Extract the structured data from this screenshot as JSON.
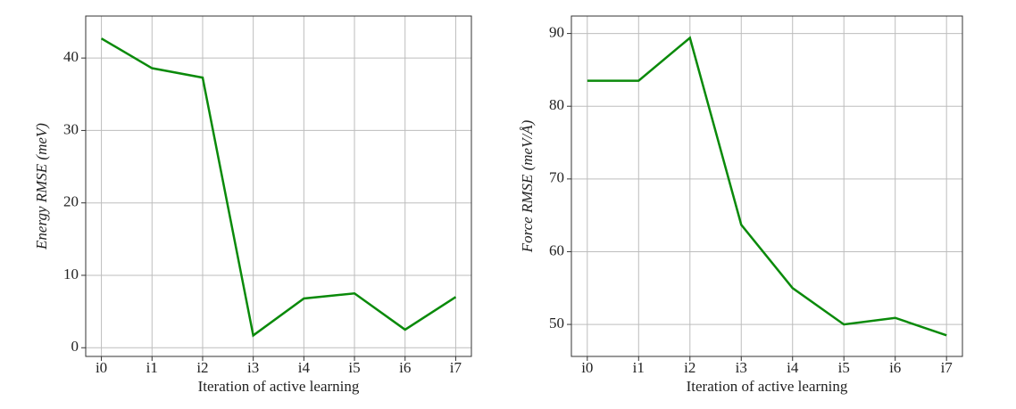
{
  "chart_data": [
    {
      "type": "line",
      "xlabel": "Iteration of active learning",
      "ylabel": "Energy RMSE (meV)",
      "categories": [
        "i0",
        "i1",
        "i2",
        "i3",
        "i4",
        "i5",
        "i6",
        "i7"
      ],
      "series": [
        {
          "color": "#0a8a0a",
          "values": [
            42.7,
            38.6,
            37.3,
            1.7,
            6.8,
            7.5,
            2.5,
            7.0
          ]
        }
      ],
      "ylim": [
        -1.2,
        45.8
      ],
      "yticks": [
        0,
        10,
        20,
        30,
        40
      ],
      "grid": true
    },
    {
      "type": "line",
      "xlabel": "Iteration of active learning",
      "ylabel": "Force RMSE (meV/Å)",
      "categories": [
        "i0",
        "i1",
        "i2",
        "i3",
        "i4",
        "i5",
        "i6",
        "i7"
      ],
      "series": [
        {
          "color": "#0a8a0a",
          "values": [
            83.5,
            83.5,
            89.4,
            63.7,
            55.0,
            50.0,
            50.9,
            48.5
          ]
        }
      ],
      "ylim": [
        45.6,
        92.4
      ],
      "yticks": [
        50,
        60,
        70,
        80,
        90
      ],
      "grid": true
    }
  ]
}
